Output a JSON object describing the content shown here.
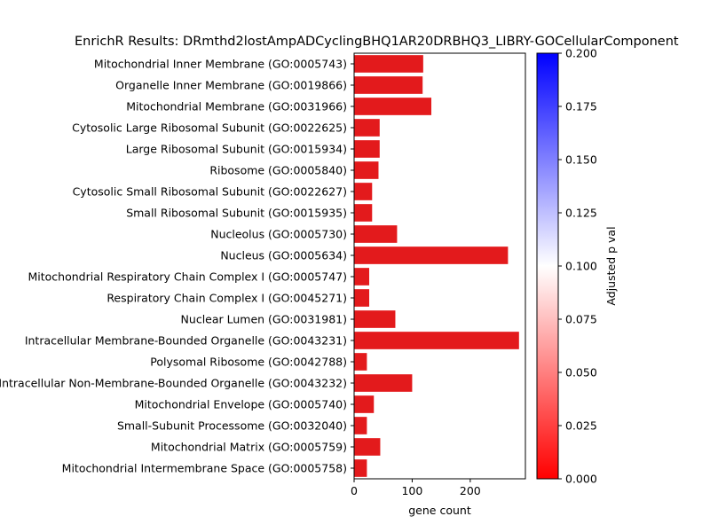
{
  "chart_data": {
    "type": "bar",
    "orientation": "horizontal",
    "title": "EnrichR Results: DRmthd2lostAmpADCyclingBHQ1AR20DRBHQ3_LIBRY-GOCellularComponent",
    "xlabel": "gene count",
    "ylabel": "",
    "xlim": [
      0,
      295
    ],
    "xticks": [
      0,
      100,
      200
    ],
    "categories": [
      "Mitochondrial Inner Membrane (GO:0005743)",
      "Organelle Inner Membrane (GO:0019866)",
      "Mitochondrial Membrane (GO:0031966)",
      "Cytosolic Large Ribosomal Subunit (GO:0022625)",
      "Large Ribosomal Subunit (GO:0015934)",
      "Ribosome (GO:0005840)",
      "Cytosolic Small Ribosomal Subunit (GO:0022627)",
      "Small Ribosomal Subunit (GO:0015935)",
      "Nucleolus (GO:0005730)",
      "Nucleus (GO:0005634)",
      "Mitochondrial Respiratory Chain Complex I (GO:0005747)",
      "Respiratory Chain Complex I (GO:0045271)",
      "Nuclear Lumen (GO:0031981)",
      "Intracellular Membrane-Bounded Organelle (GO:0043231)",
      "Polysomal Ribosome (GO:0042788)",
      "Intracellular Non-Membrane-Bounded Organelle (GO:0043232)",
      "Mitochondrial Envelope (GO:0005740)",
      "Small-Subunit Processome (GO:0032040)",
      "Mitochondrial Matrix (GO:0005759)",
      "Mitochondrial Intermembrane Space (GO:0005758)"
    ],
    "values": [
      119,
      118,
      133,
      44,
      44,
      42,
      31,
      31,
      74,
      265,
      26,
      26,
      71,
      284,
      22,
      100,
      34,
      22,
      45,
      22
    ],
    "bar_color": "#e31a1c",
    "colorbar": {
      "label": "Adjusted p val",
      "range": [
        0,
        0.2
      ],
      "ticks": [
        "0.000",
        "0.025",
        "0.050",
        "0.075",
        "0.100",
        "0.125",
        "0.150",
        "0.175",
        "0.200"
      ],
      "colors": [
        "#ff0000",
        "#ffffff",
        "#0000ff"
      ]
    },
    "grid": false
  }
}
